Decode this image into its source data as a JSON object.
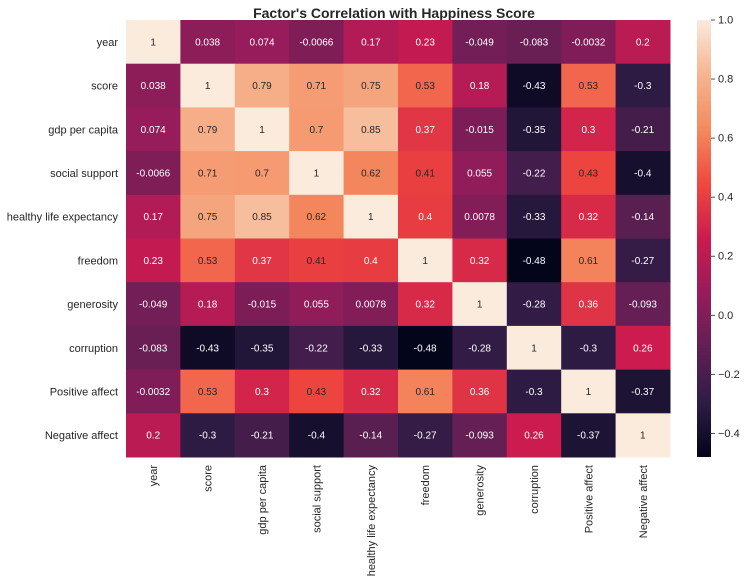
{
  "chart_data": {
    "type": "heatmap",
    "title": "Factor's Correlation with Happiness Score",
    "xlabel": "",
    "ylabel": "",
    "row_labels": [
      "year",
      "score",
      "gdp per capita",
      "social support",
      "healthy life expectancy",
      "freedom",
      "generosity",
      "corruption",
      "Positive affect",
      "Negative affect"
    ],
    "col_labels": [
      "year",
      "score",
      "gdp per capita",
      "social support",
      "healthy life expectancy",
      "freedom",
      "generosity",
      "corruption",
      "Positive affect",
      "Negative affect"
    ],
    "values": [
      [
        1,
        0.038,
        0.074,
        -0.0066,
        0.17,
        0.23,
        -0.049,
        -0.083,
        -0.0032,
        0.2
      ],
      [
        0.038,
        1,
        0.79,
        0.71,
        0.75,
        0.53,
        0.18,
        -0.43,
        0.53,
        -0.3
      ],
      [
        0.074,
        0.79,
        1,
        0.7,
        0.85,
        0.37,
        -0.015,
        -0.35,
        0.3,
        -0.21
      ],
      [
        -0.0066,
        0.71,
        0.7,
        1,
        0.62,
        0.41,
        0.055,
        -0.22,
        0.43,
        -0.4
      ],
      [
        0.17,
        0.75,
        0.85,
        0.62,
        1,
        0.4,
        0.0078,
        -0.33,
        0.32,
        -0.14
      ],
      [
        0.23,
        0.53,
        0.37,
        0.41,
        0.4,
        1,
        0.32,
        -0.48,
        0.61,
        -0.27
      ],
      [
        -0.049,
        0.18,
        -0.015,
        0.055,
        0.0078,
        0.32,
        1,
        -0.28,
        0.36,
        -0.093
      ],
      [
        -0.083,
        -0.43,
        -0.35,
        -0.22,
        -0.33,
        -0.48,
        -0.28,
        1,
        -0.3,
        0.26
      ],
      [
        -0.0032,
        0.53,
        0.3,
        0.43,
        0.32,
        0.61,
        0.36,
        -0.3,
        1,
        -0.37
      ],
      [
        0.2,
        -0.3,
        -0.21,
        -0.4,
        -0.14,
        -0.27,
        -0.093,
        0.26,
        -0.37,
        1
      ]
    ],
    "annotations": [
      [
        "1",
        "0.038",
        "0.074",
        "-0.0066",
        "0.17",
        "0.23",
        "-0.049",
        "-0.083",
        "-0.0032",
        "0.2"
      ],
      [
        "0.038",
        "1",
        "0.79",
        "0.71",
        "0.75",
        "0.53",
        "0.18",
        "-0.43",
        "0.53",
        "-0.3"
      ],
      [
        "0.074",
        "0.79",
        "1",
        "0.7",
        "0.85",
        "0.37",
        "-0.015",
        "-0.35",
        "0.3",
        "-0.21"
      ],
      [
        "-0.0066",
        "0.71",
        "0.7",
        "1",
        "0.62",
        "0.41",
        "0.055",
        "-0.22",
        "0.43",
        "-0.4"
      ],
      [
        "0.17",
        "0.75",
        "0.85",
        "0.62",
        "1",
        "0.4",
        "0.0078",
        "-0.33",
        "0.32",
        "-0.14"
      ],
      [
        "0.23",
        "0.53",
        "0.37",
        "0.41",
        "0.4",
        "1",
        "0.32",
        "-0.48",
        "0.61",
        "-0.27"
      ],
      [
        "-0.049",
        "0.18",
        "-0.015",
        "0.055",
        "0.0078",
        "0.32",
        "1",
        "-0.28",
        "0.36",
        "-0.093"
      ],
      [
        "-0.083",
        "-0.43",
        "-0.35",
        "-0.22",
        "-0.33",
        "-0.48",
        "-0.28",
        "1",
        "-0.3",
        "0.26"
      ],
      [
        "-0.0032",
        "0.53",
        "0.3",
        "0.43",
        "0.32",
        "0.61",
        "0.36",
        "-0.3",
        "1",
        "-0.37"
      ],
      [
        "0.2",
        "-0.3",
        "-0.21",
        "-0.4",
        "-0.14",
        "-0.27",
        "-0.093",
        "0.26",
        "-0.37",
        "1"
      ]
    ],
    "colorbar": {
      "vmin": -0.48,
      "vmax": 1,
      "ticks": [
        1.0,
        0.8,
        0.6,
        0.4,
        0.2,
        0.0,
        -0.2,
        -0.4
      ],
      "tick_labels": [
        "1.0",
        "0.8",
        "0.6",
        "0.4",
        "0.2",
        "0.0",
        "−0.2",
        "−0.4"
      ],
      "colormap": "rocket",
      "colormap_stops": [
        "#03051a",
        "#2e1c45",
        "#611f53",
        "#971c5b",
        "#cb1b4f",
        "#f0483e",
        "#f48a5f",
        "#f6b48f",
        "#faebdd"
      ]
    },
    "legend": "none",
    "grid": false,
    "annotation_light_color": "#ffffff",
    "annotation_dark_color": "#262626"
  }
}
